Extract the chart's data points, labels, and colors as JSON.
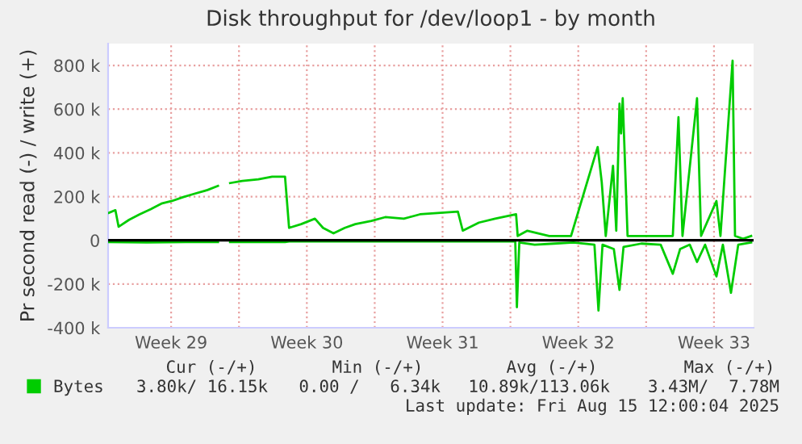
{
  "chart_data": {
    "type": "line",
    "title": "Disk throughput for /dev/loop1 - by month",
    "ylabel": "Pr second read (-) / write (+)",
    "xlim": [
      "2025-07-13T06:00",
      "2025-08-15T13:00"
    ],
    "xticks": [
      {
        "value": "2025-07-16T12:00",
        "label": "Week 29"
      },
      {
        "value": "2025-07-20",
        "label": null
      },
      {
        "value": "2025-07-23T12:00",
        "label": "Week 30"
      },
      {
        "value": "2025-07-27",
        "label": null
      },
      {
        "value": "2025-07-30T12:00",
        "label": "Week 31"
      },
      {
        "value": "2025-08-03",
        "label": null
      },
      {
        "value": "2025-08-06T12:00",
        "label": "Week 32"
      },
      {
        "value": "2025-08-10",
        "label": null
      },
      {
        "value": "2025-08-13T12:00",
        "label": "Week 33"
      }
    ],
    "ylim": [
      -400,
      900
    ],
    "yticks": [
      {
        "value": -400,
        "label": "-400 k"
      },
      {
        "value": -200,
        "label": "-200 k"
      },
      {
        "value": 0,
        "label": "0"
      },
      {
        "value": 200,
        "label": "200 k"
      },
      {
        "value": 400,
        "label": "400 k"
      },
      {
        "value": 600,
        "label": "600 k"
      },
      {
        "value": 800,
        "label": "800 k"
      }
    ],
    "grid": true,
    "legend": "bottom",
    "marker": "none",
    "line_style": "solid",
    "ref_lines": [
      {
        "axis": "y",
        "value": 0,
        "label": null,
        "color": "#000000"
      }
    ],
    "series": [
      {
        "name": "Bytes",
        "color": "#00cc00",
        "x": [
          "2025-07-13T07:00",
          "2025-07-13T15:00",
          "2025-07-13T19:00",
          "2025-07-14T08:00",
          "2025-07-14T21:00",
          "2025-07-15T11:00",
          "2025-07-16T00:00",
          "2025-07-16T13:00",
          "2025-07-17T03:00",
          "2025-07-17T16:00",
          "2025-07-18T09:00",
          "2025-07-18T22:00",
          "2025-07-19T04:00",
          "2025-07-19T13:00",
          "2025-07-20T04:00",
          "2025-07-21T00:00",
          "2025-07-21T17:00",
          "2025-07-22T09:00",
          "2025-07-22T14:00",
          "2025-07-23T05:00",
          "2025-07-23T22:00",
          "2025-07-24T08:00",
          "2025-07-24T21:00",
          "2025-07-25T11:00",
          "2025-07-26T00:00",
          "2025-07-26T20:00",
          "2025-07-27T13:00",
          "2025-07-28T12:00",
          "2025-07-28T19:00",
          "2025-07-29T08:00",
          "2025-07-31T07:00",
          "2025-07-31T13:00",
          "2025-08-01T09:00",
          "2025-08-02T05:00",
          "2025-08-03T07:00",
          "2025-08-03T09:00",
          "2025-08-03T21:00",
          "2025-08-05T00:00",
          "2025-08-06T03:00",
          "2025-08-07T12:00",
          "2025-08-07T17:00",
          "2025-08-07T22:00",
          "2025-08-08T07:00",
          "2025-08-08T11:00",
          "2025-08-08T15:00",
          "2025-08-08T17:00",
          "2025-08-08T19:00",
          "2025-08-09T01:00",
          "2025-08-09T11:00",
          "2025-08-10T13:00",
          "2025-08-11T09:00",
          "2025-08-11T16:00",
          "2025-08-11T21:00",
          "2025-08-12T15:00",
          "2025-08-12T20:00",
          "2025-08-13T15:00",
          "2025-08-13T20:00",
          "2025-08-14T11:00",
          "2025-08-14T14:00",
          "2025-08-15T00:00",
          "2025-08-15T10:00"
        ],
        "values": [
          126,
          138,
          62,
          94,
          119,
          143,
          168,
          180,
          198,
          212,
          230,
          249,
          null,
          262,
          272,
          279,
          291,
          291,
          57,
          74,
          99,
          57,
          32,
          57,
          74,
          89,
          106,
          99,
          106,
          119,
          131,
          44,
          81,
          99,
          119,
          20,
          44,
          20,
          20,
          427,
          267,
          20,
          341,
          44,
          625,
          489,
          650,
          20,
          20,
          20,
          20,
          563,
          20,
          650,
          20,
          180,
          20,
          822,
          20,
          7,
          20
        ]
      },
      {
        "color": "#00cc00",
        "x": [
          "2025-07-13T07:00",
          "2025-07-15T06:00",
          "2025-07-17T06:00",
          "2025-07-18T22:00",
          "2025-07-19T04:00",
          "2025-07-19T13:00",
          "2025-07-22T09:00",
          "2025-07-22T14:00",
          "2025-07-28T06:00",
          "2025-08-03T06:00",
          "2025-08-03T08:00",
          "2025-08-03T11:00",
          "2025-08-04T06:00",
          "2025-08-05T06:00",
          "2025-08-06T06:00",
          "2025-08-07T08:00",
          "2025-08-07T13:00",
          "2025-08-07T18:00",
          "2025-08-08T08:00",
          "2025-08-08T15:00",
          "2025-08-08T20:00",
          "2025-08-09T18:00",
          "2025-08-10T18:00",
          "2025-08-11T09:00",
          "2025-08-11T18:00",
          "2025-08-12T06:00",
          "2025-08-12T15:00",
          "2025-08-13T01:00",
          "2025-08-13T15:00",
          "2025-08-13T23:00",
          "2025-08-14T09:00",
          "2025-08-14T18:00",
          "2025-08-15T10:00"
        ],
        "values": [
          -8,
          -10,
          -8,
          -8,
          null,
          -8,
          -8,
          -5,
          -5,
          -5,
          -306,
          -10,
          -20,
          -15,
          -10,
          -20,
          -321,
          -20,
          -40,
          -227,
          -30,
          -15,
          -20,
          -153,
          -40,
          -20,
          -99,
          -20,
          -165,
          -20,
          -240,
          -20,
          -10
        ]
      }
    ],
    "annotations": [
      "Cur (-/+)",
      "Min (-/+)",
      "Avg (-/+)",
      "Max (-/+)",
      "3.80k/ 16.15k",
      "0.00 /   6.34k",
      "10.89k/113.06k",
      "3.43M/  7.78M",
      "Last update: Fri Aug 15 12:00:04 2025"
    ]
  }
}
